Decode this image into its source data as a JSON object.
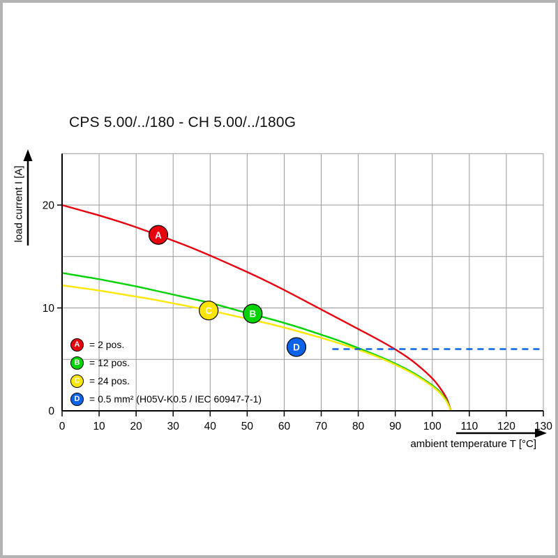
{
  "title": "CPS 5.00/../180 - CH 5.00/../180G",
  "axes": {
    "x_label": "ambient temperature T [°C]",
    "y_label": "load current I [A]"
  },
  "chart_data": {
    "type": "line",
    "title": "CPS 5.00/../180 - CH 5.00/../180G",
    "xlabel": "ambient temperature T [°C]",
    "ylabel": "load current I [A]",
    "xlim": [
      0,
      130
    ],
    "ylim": [
      0,
      25
    ],
    "x_ticks": [
      0,
      10,
      20,
      30,
      40,
      50,
      60,
      70,
      80,
      90,
      100,
      110,
      120,
      130
    ],
    "y_ticks_labeled": [
      0,
      10,
      20
    ],
    "y_gridlines": [
      5,
      10,
      15,
      20,
      25
    ],
    "grid": true,
    "colors": {
      "grid": "#999999",
      "axis": "#000000",
      "red": "#e8000f",
      "green": "#00d300",
      "yellow": "#ffe600",
      "blue": "#0a63e8"
    },
    "series": [
      {
        "name": "2 pos.",
        "letter": "A",
        "color": "#e8000f",
        "style": "solid",
        "points": [
          [
            0,
            20
          ],
          [
            5,
            19.5
          ],
          [
            10,
            19
          ],
          [
            15,
            18.45
          ],
          [
            20,
            17.85
          ],
          [
            25,
            17.2
          ],
          [
            30,
            16.55
          ],
          [
            35,
            15.85
          ],
          [
            40,
            15.1
          ],
          [
            45,
            14.3
          ],
          [
            50,
            13.5
          ],
          [
            55,
            12.65
          ],
          [
            60,
            11.75
          ],
          [
            65,
            10.8
          ],
          [
            70,
            9.85
          ],
          [
            75,
            8.9
          ],
          [
            80,
            7.95
          ],
          [
            85,
            7.0
          ],
          [
            90,
            6.0
          ],
          [
            95,
            4.8
          ],
          [
            100,
            3.2
          ],
          [
            102,
            2.3
          ],
          [
            104,
            1.2
          ],
          [
            105,
            0
          ]
        ]
      },
      {
        "name": "12 pos.",
        "letter": "B",
        "color": "#00d300",
        "style": "solid",
        "points": [
          [
            0,
            13.4
          ],
          [
            5,
            13.1
          ],
          [
            10,
            12.8
          ],
          [
            15,
            12.45
          ],
          [
            20,
            12.1
          ],
          [
            25,
            11.7
          ],
          [
            30,
            11.3
          ],
          [
            35,
            10.9
          ],
          [
            40,
            10.5
          ],
          [
            45,
            10.0
          ],
          [
            50,
            9.5
          ],
          [
            55,
            9.05
          ],
          [
            60,
            8.55
          ],
          [
            65,
            8.0
          ],
          [
            70,
            7.4
          ],
          [
            75,
            6.8
          ],
          [
            80,
            6.1
          ],
          [
            85,
            5.4
          ],
          [
            90,
            4.6
          ],
          [
            95,
            3.7
          ],
          [
            100,
            2.5
          ],
          [
            102,
            1.9
          ],
          [
            104,
            1.0
          ],
          [
            105,
            0
          ]
        ]
      },
      {
        "name": "24 pos.",
        "letter": "C",
        "color": "#ffe600",
        "style": "solid",
        "points": [
          [
            0,
            12.2
          ],
          [
            5,
            11.95
          ],
          [
            10,
            11.7
          ],
          [
            15,
            11.4
          ],
          [
            20,
            11.1
          ],
          [
            25,
            10.8
          ],
          [
            30,
            10.45
          ],
          [
            35,
            10.1
          ],
          [
            40,
            9.75
          ],
          [
            45,
            9.35
          ],
          [
            50,
            8.95
          ],
          [
            55,
            8.55
          ],
          [
            60,
            8.1
          ],
          [
            65,
            7.6
          ],
          [
            70,
            7.1
          ],
          [
            75,
            6.55
          ],
          [
            80,
            5.95
          ],
          [
            85,
            5.3
          ],
          [
            90,
            4.5
          ],
          [
            95,
            3.6
          ],
          [
            100,
            2.4
          ],
          [
            102,
            1.8
          ],
          [
            104,
            0.9
          ],
          [
            105,
            0
          ]
        ]
      },
      {
        "name": "0.5 mm² (H05V-K0.5 / IEC 60947-7-1)",
        "letter": "D",
        "color": "#0a63e8",
        "style": "dashed",
        "points": [
          [
            73,
            6
          ],
          [
            130,
            6
          ]
        ]
      }
    ],
    "markers": [
      {
        "letter": "A",
        "color": "#e8000f",
        "t": 26,
        "i": 17.1
      },
      {
        "letter": "B",
        "color": "#00d300",
        "t": 51.5,
        "i": 9.45
      },
      {
        "letter": "C",
        "color": "#ffe600",
        "t": 39.6,
        "i": 9.75
      },
      {
        "letter": "D",
        "color": "#0a63e8",
        "t": 63.3,
        "i": 6.2
      }
    ],
    "legend": [
      {
        "letter": "A",
        "color": "#e8000f",
        "label": "= 2 pos."
      },
      {
        "letter": "B",
        "color": "#00d300",
        "label": "= 12 pos."
      },
      {
        "letter": "C",
        "color": "#ffe600",
        "label": "= 24 pos."
      },
      {
        "letter": "D",
        "color": "#0a63e8",
        "label": "= 0.5 mm² (H05V-K0.5 / IEC 60947-7-1)"
      }
    ]
  }
}
